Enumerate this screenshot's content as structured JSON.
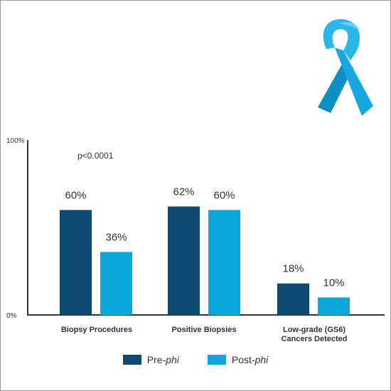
{
  "colors": {
    "pre": "#0c4a70",
    "post": "#0aa7dc",
    "axis": "#333333",
    "text": "#333333"
  },
  "chart_data": {
    "type": "bar",
    "categories": [
      "Biopsy Procedures",
      "Positive Biopsies",
      "Low-grade (GS6)\nCancers Detected"
    ],
    "series": [
      {
        "name": "Pre-phi",
        "values": [
          60,
          62,
          18
        ]
      },
      {
        "name": "Post-phi",
        "values": [
          36,
          60,
          10
        ]
      }
    ],
    "data_labels": [
      [
        "60%",
        "62%",
        "18%"
      ],
      [
        "36%",
        "60%",
        "10%"
      ]
    ],
    "ylim": [
      0,
      100
    ],
    "y_tick_labels": [
      "0%",
      "100%"
    ],
    "annotation": "p<0.0001",
    "legend_position": "bottom",
    "grid": false
  },
  "legend": {
    "pre": {
      "prefix": "Pre-",
      "italic": "phi"
    },
    "post": {
      "prefix": "Post-",
      "italic": "phi"
    }
  },
  "decoration": {
    "icon": "awareness-ribbon-icon",
    "color": "#16a8e0"
  }
}
